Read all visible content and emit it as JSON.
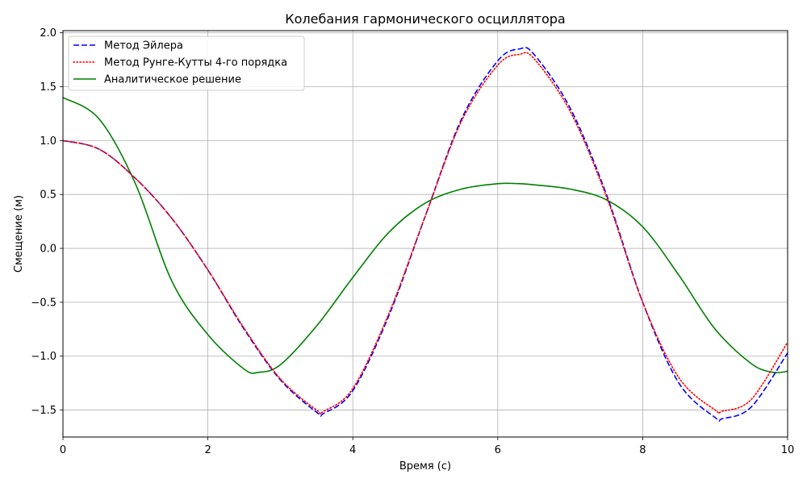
{
  "chart_data": {
    "type": "line",
    "title": "Колебания гармонического осциллятора",
    "xlabel": "Время (с)",
    "ylabel": "Смещение (м)",
    "xlim": [
      0,
      10
    ],
    "ylim": [
      -1.75,
      2.02
    ],
    "grid": true,
    "legend_position": "top-left",
    "xticks": [
      0,
      2,
      4,
      6,
      8,
      10
    ],
    "xtick_labels": [
      "0",
      "2",
      "4",
      "6",
      "8",
      "10"
    ],
    "yticks": [
      -1.5,
      -1.0,
      -0.5,
      0.0,
      0.5,
      1.0,
      1.5,
      2.0
    ],
    "ytick_labels": [
      "−1.5",
      "−1.0",
      "−0.5",
      "0.0",
      "0.5",
      "1.0",
      "1.5",
      "2.0"
    ],
    "series": [
      {
        "name": "Метод Эйлера",
        "color": "#0000ff",
        "style": "dashed",
        "x": [
          0,
          0.5,
          1.0,
          1.5,
          2.0,
          2.5,
          3.0,
          3.5,
          3.6,
          4.0,
          4.5,
          5.0,
          5.5,
          6.0,
          6.3,
          6.5,
          7.0,
          7.5,
          8.0,
          8.5,
          9.0,
          9.1,
          9.5,
          10.0
        ],
        "y": [
          1.0,
          0.92,
          0.65,
          0.28,
          -0.2,
          -0.75,
          -1.22,
          -1.52,
          -1.53,
          -1.32,
          -0.62,
          0.3,
          1.2,
          1.74,
          1.85,
          1.8,
          1.3,
          0.5,
          -0.5,
          -1.25,
          -1.57,
          -1.58,
          -1.47,
          -0.97
        ]
      },
      {
        "name": "Метод Рунге-Кутты 4-го порядка",
        "color": "#ff0000",
        "style": "dotted",
        "x": [
          0,
          0.5,
          1.0,
          1.5,
          2.0,
          2.5,
          3.0,
          3.5,
          3.6,
          4.0,
          4.5,
          5.0,
          5.5,
          6.0,
          6.3,
          6.5,
          7.0,
          7.5,
          8.0,
          8.5,
          9.0,
          9.1,
          9.5,
          10.0
        ],
        "y": [
          1.0,
          0.92,
          0.65,
          0.28,
          -0.2,
          -0.74,
          -1.21,
          -1.5,
          -1.51,
          -1.3,
          -0.6,
          0.3,
          1.18,
          1.7,
          1.8,
          1.76,
          1.27,
          0.48,
          -0.5,
          -1.2,
          -1.5,
          -1.51,
          -1.4,
          -0.87
        ]
      },
      {
        "name": "Аналитическое решение",
        "color": "#008000",
        "style": "solid",
        "x": [
          0,
          0.5,
          1.0,
          1.5,
          2.0,
          2.5,
          2.7,
          3.0,
          3.5,
          4.0,
          4.5,
          5.0,
          5.5,
          6.0,
          6.3,
          6.5,
          7.0,
          7.5,
          8.0,
          8.5,
          9.0,
          9.5,
          9.8,
          10.0
        ],
        "y": [
          1.4,
          1.2,
          0.6,
          -0.3,
          -0.8,
          -1.12,
          -1.15,
          -1.08,
          -0.72,
          -0.27,
          0.15,
          0.42,
          0.55,
          0.6,
          0.6,
          0.59,
          0.55,
          0.45,
          0.2,
          -0.25,
          -0.75,
          -1.07,
          -1.15,
          -1.14
        ]
      }
    ]
  }
}
